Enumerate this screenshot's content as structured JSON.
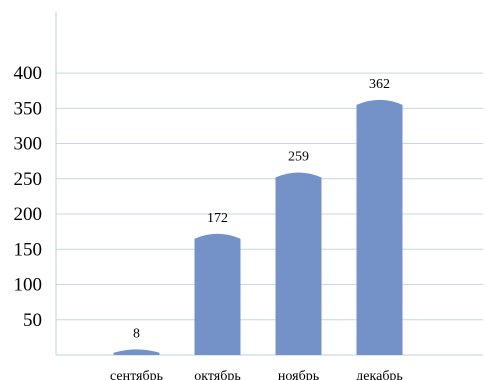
{
  "chart_data": {
    "type": "bar",
    "categories": [
      "сентябрь",
      "октябрь",
      "ноябрь",
      "декабрь"
    ],
    "values": [
      8,
      172,
      259,
      362
    ],
    "yticks": [
      50,
      100,
      150,
      200,
      250,
      300,
      350,
      400
    ],
    "ylim": [
      0,
      450
    ],
    "grid": true,
    "bar_color": "#7592c8",
    "grid_color": "#c5d9e1",
    "axis_color": "#bcd3db",
    "title": "",
    "xlabel": "",
    "ylabel": ""
  }
}
